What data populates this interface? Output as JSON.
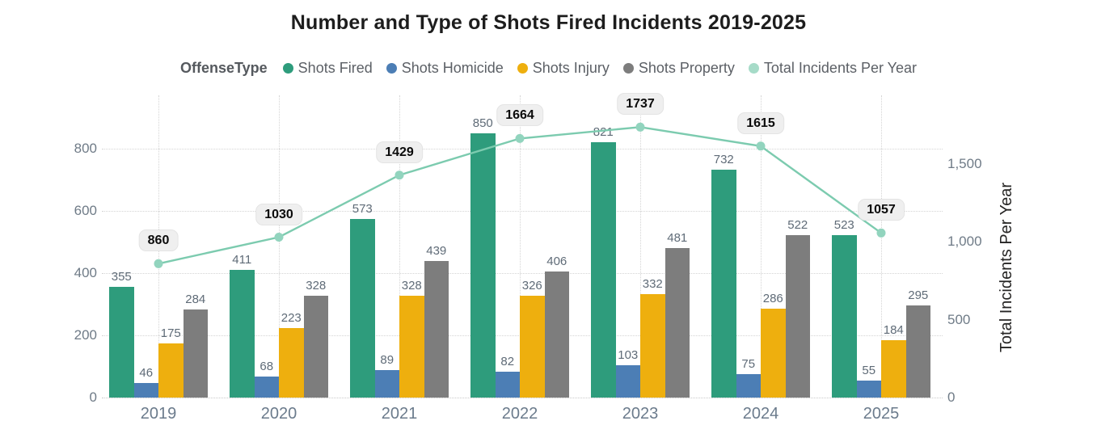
{
  "title": "Number and Type of Shots Fired Incidents 2019-2025",
  "legend": {
    "title": "OffenseType",
    "items": [
      {
        "label": "Shots Fired",
        "color": "#2E9C7C"
      },
      {
        "label": "Shots Homicide",
        "color": "#4C7EB5"
      },
      {
        "label": "Shots Injury",
        "color": "#EEAF0E"
      },
      {
        "label": "Shots Property",
        "color": "#7D7D7D"
      },
      {
        "label": "Total Incidents Per Year",
        "color": "#A6DBC8"
      }
    ]
  },
  "chart_data": {
    "type": "bar",
    "subtype": "grouped-bars-with-line-overlay",
    "title": "Number and Type of Shots Fired Incidents 2019-2025",
    "categories": [
      "2019",
      "2020",
      "2021",
      "2022",
      "2023",
      "2024",
      "2025"
    ],
    "series": [
      {
        "name": "Shots Fired",
        "color": "#2E9C7C",
        "values": [
          355,
          411,
          573,
          850,
          821,
          732,
          523
        ]
      },
      {
        "name": "Shots Homicide",
        "color": "#4C7EB5",
        "values": [
          46,
          68,
          89,
          82,
          103,
          75,
          55
        ]
      },
      {
        "name": "Shots Injury",
        "color": "#EEAF0E",
        "values": [
          175,
          223,
          328,
          326,
          332,
          286,
          184
        ]
      },
      {
        "name": "Shots Property",
        "color": "#7D7D7D",
        "values": [
          284,
          328,
          439,
          406,
          481,
          522,
          295
        ]
      }
    ],
    "line_series": {
      "name": "Total Incidents Per Year",
      "line_color": "#7CCBAF",
      "marker_color": "#92D4BE",
      "values": [
        860,
        1030,
        1429,
        1664,
        1737,
        1615,
        1057
      ]
    },
    "left_axis": {
      "ticks": [
        0,
        200,
        400,
        600,
        800
      ],
      "range": [
        0,
        960
      ]
    },
    "right_axis": {
      "title": "Total Incidents Per Year",
      "ticks": [
        {
          "label": "0",
          "value": 0
        },
        {
          "label": "500",
          "value": 500
        },
        {
          "label": "1,000",
          "value": 1000
        },
        {
          "label": "1,500",
          "value": 1500
        }
      ],
      "range": [
        0,
        1920
      ]
    },
    "grid": true,
    "legend_position": "top",
    "data_labels": true
  }
}
